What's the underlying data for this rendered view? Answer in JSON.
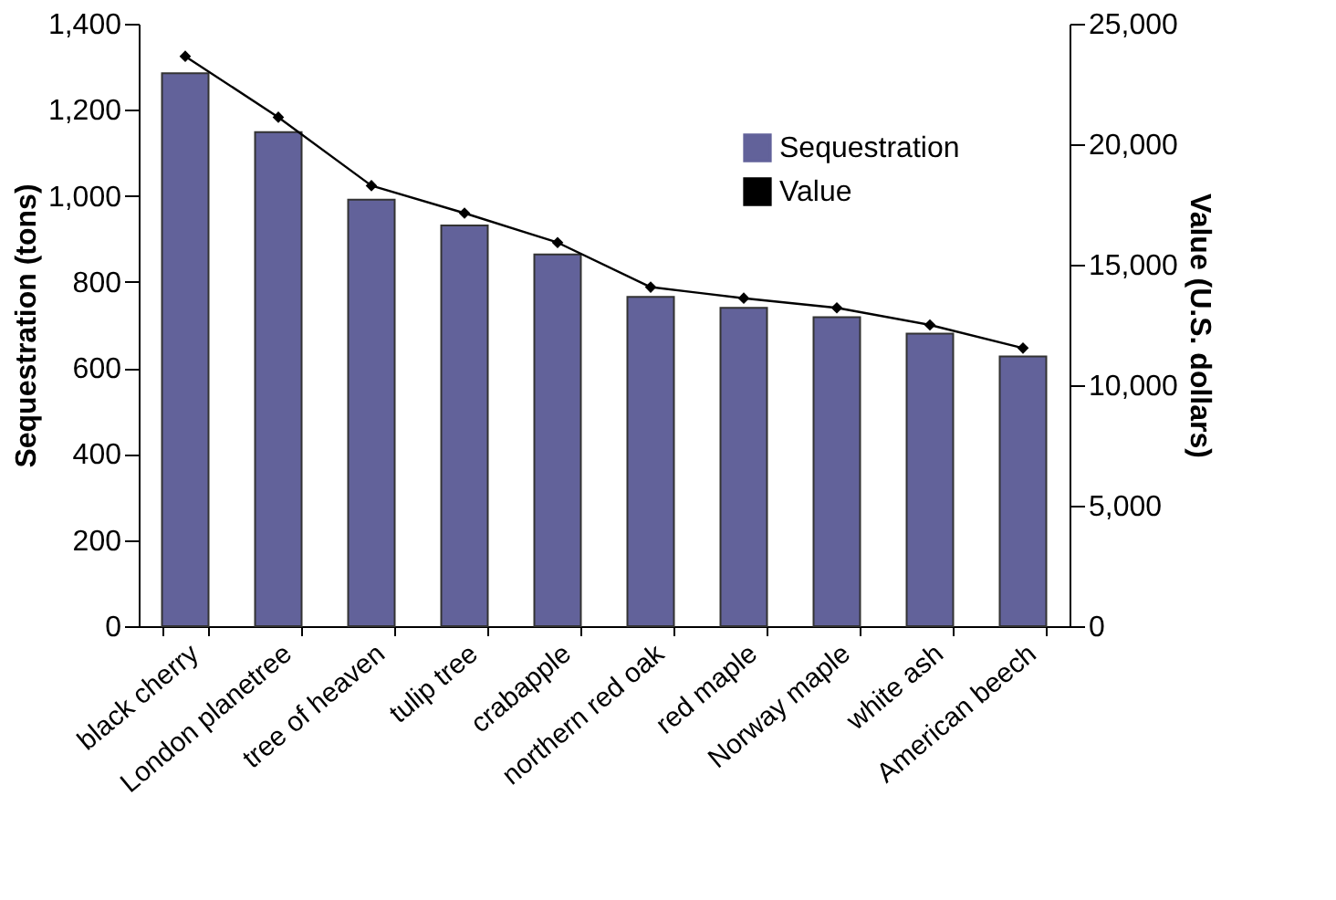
{
  "chart_data": {
    "type": "bar",
    "categories": [
      "black cherry",
      "London planetree",
      "tree of heaven",
      "tulip tree",
      "crabapple",
      "northern red oak",
      "red maple",
      "Norway maple",
      "white ash",
      "American beech"
    ],
    "series": [
      {
        "name": "Sequestration",
        "color": "#62629a",
        "values": [
          1285,
          1148,
          991,
          931,
          864,
          765,
          740,
          718,
          680,
          627
        ]
      },
      {
        "name": "Value",
        "type": "line",
        "axis": "y2",
        "color": "#000000",
        "marker": "diamond",
        "values": [
          23650,
          21120,
          18280,
          17140,
          15920,
          14070,
          13610,
          13210,
          12500,
          11540
        ]
      }
    ],
    "ylabel": "Sequestration (tons)",
    "y2label": "Value (U.S. dollars)",
    "ylim": [
      0,
      1400
    ],
    "yticks": [
      0,
      200,
      400,
      600,
      800,
      {
        "value": 1000,
        "label": "1,000"
      },
      {
        "value": 1200,
        "label": "1,200"
      },
      {
        "value": 1400,
        "label": "1,400"
      }
    ],
    "y2lim": [
      0,
      25000
    ],
    "y2ticks": [
      0,
      {
        "value": 5000,
        "label": "5,000"
      },
      {
        "value": 10000,
        "label": "10,000"
      },
      {
        "value": 15000,
        "label": "15,000"
      },
      {
        "value": 20000,
        "label": "20,000"
      },
      {
        "value": 25000,
        "label": "25,000"
      }
    ],
    "grid": false,
    "legend": "top right"
  }
}
